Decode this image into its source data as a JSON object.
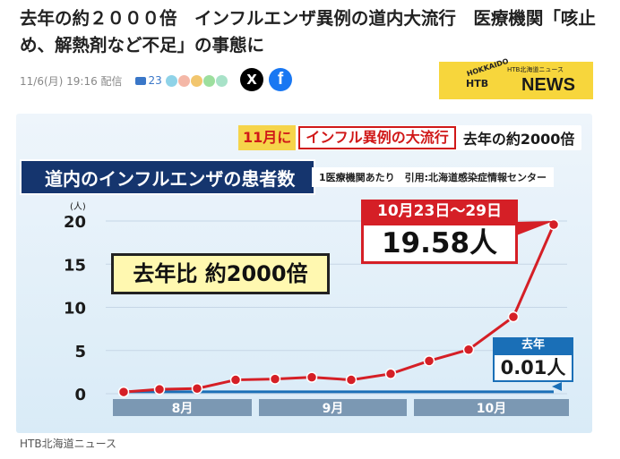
{
  "article": {
    "headline": "去年の約２０００倍　インフルエンザ異例の道内大流行　医療機関「咳止め、解熱剤など不足」の事態に",
    "datetime": "11/6(月) 19:16 配信",
    "comment_count": "23",
    "caption": "HTB北海道ニュース"
  },
  "logo": {
    "hokkaido": "HOKKAIDO",
    "brand": "HTB",
    "sub": "HTB北海道ニュース",
    "news": "NEWS"
  },
  "social": {
    "x_icon": "X",
    "fb_icon": "f"
  },
  "infographic": {
    "banner_part1": "11月に",
    "banner_part2": "インフル異例の大流行",
    "banner_part3": "去年の約2000倍",
    "title": "道内のインフルエンザの患者数",
    "source": "1医療機関あたり　引用:北海道感染症情報センター",
    "yoy_label": "去年比 約2000倍",
    "callout_label": "10月23日～29日",
    "callout_value": "19.58人",
    "last_year_label": "去年",
    "last_year_value": "0.01人"
  },
  "chart_data": {
    "type": "line",
    "title": "道内のインフルエンザの患者数",
    "ylabel": "(人)",
    "ylim": [
      0,
      20
    ],
    "yticks": [
      "0",
      "5",
      "10",
      "15",
      "20"
    ],
    "months": [
      "8月",
      "9月",
      "10月"
    ],
    "series": [
      {
        "values": [
          0.2,
          0.5,
          0.6,
          1.6,
          1.7,
          1.9,
          1.6,
          2.3,
          3.8,
          5.1,
          8.9,
          19.58
        ]
      },
      {
        "name": "去年",
        "values": [
          0.01,
          0.01,
          0.01,
          0.01,
          0.01,
          0.01,
          0.01,
          0.01,
          0.01,
          0.01,
          0.01,
          0.01
        ]
      }
    ],
    "colors": {
      "line": "#d51f26",
      "last_year": "#1a6fb7"
    }
  }
}
